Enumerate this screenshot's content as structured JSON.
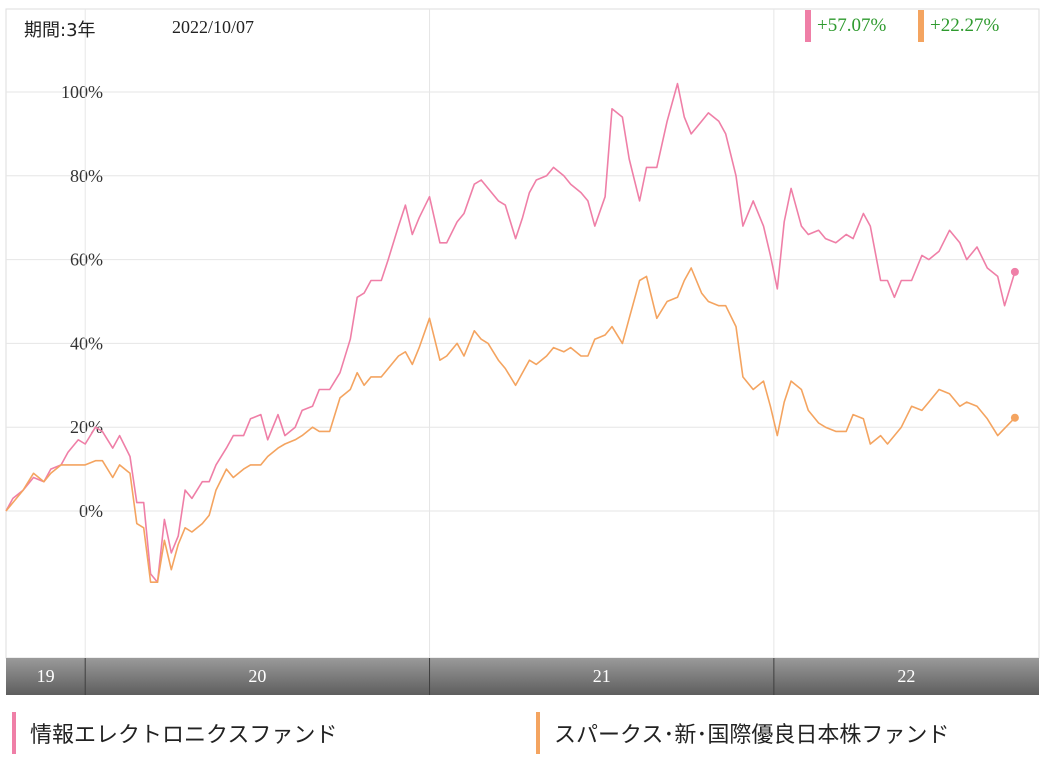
{
  "header": {
    "period": "期間:3年",
    "date": "2022/10/07"
  },
  "badges": [
    {
      "value": "+57.07%",
      "color": "#ef7fa7"
    },
    {
      "value": "+22.27%",
      "color": "#f4a460"
    }
  ],
  "legend": [
    {
      "label": "情報エレクトロニクスファンド",
      "color": "#ef7fa7"
    },
    {
      "label": "スパークス･新･国際優良日本株ファンド",
      "color": "#f4a460"
    }
  ],
  "chart_data": {
    "type": "line",
    "title": "",
    "xlabel": "",
    "ylabel": "",
    "ylim": [
      -35,
      120
    ],
    "yticks": [
      {
        "value": 100,
        "label": "100%"
      },
      {
        "value": 80,
        "label": "80%"
      },
      {
        "value": 60,
        "label": "60%"
      },
      {
        "value": 40,
        "label": "40%"
      },
      {
        "value": 20,
        "label": "20%"
      },
      {
        "value": 0,
        "label": "0%"
      }
    ],
    "xlim": [
      2019.77,
      2022.77
    ],
    "x_periods": [
      {
        "label": "19",
        "start": 2019.77,
        "end": 2020.0
      },
      {
        "label": "20",
        "start": 2020.0,
        "end": 2021.0
      },
      {
        "label": "21",
        "start": 2021.0,
        "end": 2022.0
      },
      {
        "label": "22",
        "start": 2022.0,
        "end": 2022.77
      }
    ],
    "grid": true,
    "legend_position": "bottom",
    "series": [
      {
        "name": "情報エレクトロニクスファンド",
        "color": "#ef7fa7",
        "points": [
          [
            2019.77,
            0
          ],
          [
            2019.79,
            3
          ],
          [
            2019.82,
            5
          ],
          [
            2019.85,
            8
          ],
          [
            2019.88,
            7
          ],
          [
            2019.9,
            10
          ],
          [
            2019.93,
            11
          ],
          [
            2019.95,
            14
          ],
          [
            2019.98,
            17
          ],
          [
            2020.0,
            16
          ],
          [
            2020.03,
            20
          ],
          [
            2020.05,
            19
          ],
          [
            2020.08,
            15
          ],
          [
            2020.1,
            18
          ],
          [
            2020.13,
            13
          ],
          [
            2020.15,
            2
          ],
          [
            2020.17,
            2
          ],
          [
            2020.19,
            -15
          ],
          [
            2020.21,
            -17
          ],
          [
            2020.23,
            -2
          ],
          [
            2020.25,
            -10
          ],
          [
            2020.27,
            -6
          ],
          [
            2020.29,
            5
          ],
          [
            2020.31,
            3
          ],
          [
            2020.34,
            7
          ],
          [
            2020.36,
            7
          ],
          [
            2020.38,
            11
          ],
          [
            2020.41,
            15
          ],
          [
            2020.43,
            18
          ],
          [
            2020.46,
            18
          ],
          [
            2020.48,
            22
          ],
          [
            2020.51,
            23
          ],
          [
            2020.53,
            17
          ],
          [
            2020.56,
            23
          ],
          [
            2020.58,
            18
          ],
          [
            2020.61,
            20
          ],
          [
            2020.63,
            24
          ],
          [
            2020.66,
            25
          ],
          [
            2020.68,
            29
          ],
          [
            2020.71,
            29
          ],
          [
            2020.74,
            33
          ],
          [
            2020.77,
            41
          ],
          [
            2020.79,
            51
          ],
          [
            2020.81,
            52
          ],
          [
            2020.83,
            55
          ],
          [
            2020.86,
            55
          ],
          [
            2020.88,
            60
          ],
          [
            2020.91,
            68
          ],
          [
            2020.93,
            73
          ],
          [
            2020.95,
            66
          ],
          [
            2020.97,
            70
          ],
          [
            2021.0,
            75
          ],
          [
            2021.03,
            64
          ],
          [
            2021.05,
            64
          ],
          [
            2021.08,
            69
          ],
          [
            2021.1,
            71
          ],
          [
            2021.13,
            78
          ],
          [
            2021.15,
            79
          ],
          [
            2021.17,
            77
          ],
          [
            2021.2,
            74
          ],
          [
            2021.22,
            73
          ],
          [
            2021.25,
            65
          ],
          [
            2021.27,
            70
          ],
          [
            2021.29,
            76
          ],
          [
            2021.31,
            79
          ],
          [
            2021.34,
            80
          ],
          [
            2021.36,
            82
          ],
          [
            2021.39,
            80
          ],
          [
            2021.41,
            78
          ],
          [
            2021.44,
            76
          ],
          [
            2021.46,
            74
          ],
          [
            2021.48,
            68
          ],
          [
            2021.51,
            75
          ],
          [
            2021.53,
            96
          ],
          [
            2021.56,
            94
          ],
          [
            2021.58,
            84
          ],
          [
            2021.61,
            74
          ],
          [
            2021.63,
            82
          ],
          [
            2021.66,
            82
          ],
          [
            2021.69,
            93
          ],
          [
            2021.72,
            102
          ],
          [
            2021.74,
            94
          ],
          [
            2021.76,
            90
          ],
          [
            2021.79,
            93
          ],
          [
            2021.81,
            95
          ],
          [
            2021.84,
            93
          ],
          [
            2021.86,
            90
          ],
          [
            2021.89,
            80
          ],
          [
            2021.91,
            68
          ],
          [
            2021.94,
            74
          ],
          [
            2021.97,
            68
          ],
          [
            2021.99,
            61
          ],
          [
            2022.01,
            53
          ],
          [
            2022.03,
            69
          ],
          [
            2022.05,
            77
          ],
          [
            2022.08,
            68
          ],
          [
            2022.1,
            66
          ],
          [
            2022.13,
            67
          ],
          [
            2022.15,
            65
          ],
          [
            2022.18,
            64
          ],
          [
            2022.21,
            66
          ],
          [
            2022.23,
            65
          ],
          [
            2022.26,
            71
          ],
          [
            2022.28,
            68
          ],
          [
            2022.31,
            55
          ],
          [
            2022.33,
            55
          ],
          [
            2022.35,
            51
          ],
          [
            2022.37,
            55
          ],
          [
            2022.4,
            55
          ],
          [
            2022.43,
            61
          ],
          [
            2022.45,
            60
          ],
          [
            2022.48,
            62
          ],
          [
            2022.51,
            67
          ],
          [
            2022.54,
            64
          ],
          [
            2022.56,
            60
          ],
          [
            2022.59,
            63
          ],
          [
            2022.62,
            58
          ],
          [
            2022.65,
            56
          ],
          [
            2022.67,
            49
          ],
          [
            2022.7,
            57.07
          ]
        ]
      },
      {
        "name": "スパークス･新･国際優良日本株ファンド",
        "color": "#f4a460",
        "points": [
          [
            2019.77,
            0
          ],
          [
            2019.79,
            2
          ],
          [
            2019.82,
            5
          ],
          [
            2019.85,
            9
          ],
          [
            2019.88,
            7
          ],
          [
            2019.9,
            9
          ],
          [
            2019.93,
            11
          ],
          [
            2019.95,
            11
          ],
          [
            2019.98,
            11
          ],
          [
            2020.0,
            11
          ],
          [
            2020.03,
            12
          ],
          [
            2020.05,
            12
          ],
          [
            2020.08,
            8
          ],
          [
            2020.1,
            11
          ],
          [
            2020.13,
            9
          ],
          [
            2020.15,
            -3
          ],
          [
            2020.17,
            -4
          ],
          [
            2020.19,
            -17
          ],
          [
            2020.21,
            -17
          ],
          [
            2020.23,
            -7
          ],
          [
            2020.25,
            -14
          ],
          [
            2020.27,
            -8
          ],
          [
            2020.29,
            -4
          ],
          [
            2020.31,
            -5
          ],
          [
            2020.34,
            -3
          ],
          [
            2020.36,
            -1
          ],
          [
            2020.38,
            5
          ],
          [
            2020.41,
            10
          ],
          [
            2020.43,
            8
          ],
          [
            2020.46,
            10
          ],
          [
            2020.48,
            11
          ],
          [
            2020.51,
            11
          ],
          [
            2020.53,
            13
          ],
          [
            2020.56,
            15
          ],
          [
            2020.58,
            16
          ],
          [
            2020.61,
            17
          ],
          [
            2020.63,
            18
          ],
          [
            2020.66,
            20
          ],
          [
            2020.68,
            19
          ],
          [
            2020.71,
            19
          ],
          [
            2020.74,
            27
          ],
          [
            2020.77,
            29
          ],
          [
            2020.79,
            33
          ],
          [
            2020.81,
            30
          ],
          [
            2020.83,
            32
          ],
          [
            2020.86,
            32
          ],
          [
            2020.88,
            34
          ],
          [
            2020.91,
            37
          ],
          [
            2020.93,
            38
          ],
          [
            2020.95,
            35
          ],
          [
            2020.97,
            39
          ],
          [
            2021.0,
            46
          ],
          [
            2021.03,
            36
          ],
          [
            2021.05,
            37
          ],
          [
            2021.08,
            40
          ],
          [
            2021.1,
            37
          ],
          [
            2021.13,
            43
          ],
          [
            2021.15,
            41
          ],
          [
            2021.17,
            40
          ],
          [
            2021.2,
            36
          ],
          [
            2021.22,
            34
          ],
          [
            2021.25,
            30
          ],
          [
            2021.27,
            33
          ],
          [
            2021.29,
            36
          ],
          [
            2021.31,
            35
          ],
          [
            2021.34,
            37
          ],
          [
            2021.36,
            39
          ],
          [
            2021.39,
            38
          ],
          [
            2021.41,
            39
          ],
          [
            2021.44,
            37
          ],
          [
            2021.46,
            37
          ],
          [
            2021.48,
            41
          ],
          [
            2021.51,
            42
          ],
          [
            2021.53,
            44
          ],
          [
            2021.56,
            40
          ],
          [
            2021.58,
            46
          ],
          [
            2021.61,
            55
          ],
          [
            2021.63,
            56
          ],
          [
            2021.66,
            46
          ],
          [
            2021.69,
            50
          ],
          [
            2021.72,
            51
          ],
          [
            2021.74,
            55
          ],
          [
            2021.76,
            58
          ],
          [
            2021.79,
            52
          ],
          [
            2021.81,
            50
          ],
          [
            2021.84,
            49
          ],
          [
            2021.86,
            49
          ],
          [
            2021.89,
            44
          ],
          [
            2021.91,
            32
          ],
          [
            2021.94,
            29
          ],
          [
            2021.97,
            31
          ],
          [
            2021.99,
            25
          ],
          [
            2022.01,
            18
          ],
          [
            2022.03,
            26
          ],
          [
            2022.05,
            31
          ],
          [
            2022.08,
            29
          ],
          [
            2022.1,
            24
          ],
          [
            2022.13,
            21
          ],
          [
            2022.15,
            20
          ],
          [
            2022.18,
            19
          ],
          [
            2022.21,
            19
          ],
          [
            2022.23,
            23
          ],
          [
            2022.26,
            22
          ],
          [
            2022.28,
            16
          ],
          [
            2022.31,
            18
          ],
          [
            2022.33,
            16
          ],
          [
            2022.35,
            18
          ],
          [
            2022.37,
            20
          ],
          [
            2022.4,
            25
          ],
          [
            2022.43,
            24
          ],
          [
            2022.45,
            26
          ],
          [
            2022.48,
            29
          ],
          [
            2022.51,
            28
          ],
          [
            2022.54,
            25
          ],
          [
            2022.56,
            26
          ],
          [
            2022.59,
            25
          ],
          [
            2022.62,
            22
          ],
          [
            2022.65,
            18
          ],
          [
            2022.7,
            22.27
          ]
        ]
      }
    ]
  }
}
